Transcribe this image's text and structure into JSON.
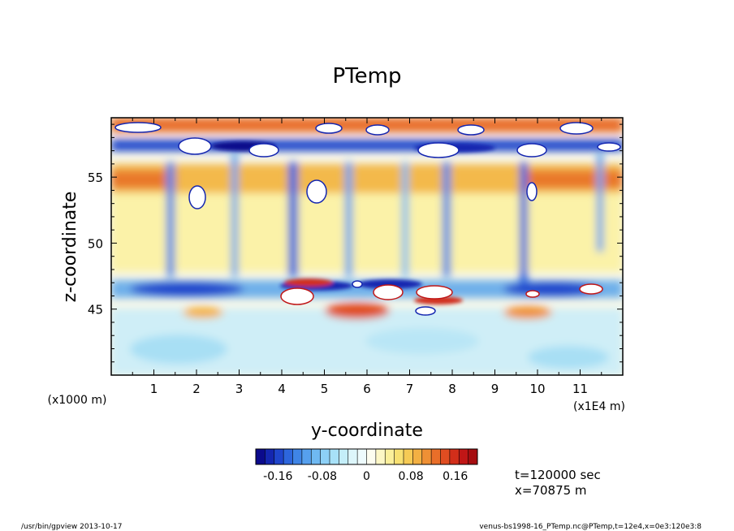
{
  "footer": {
    "left": "/usr/bin/gpview  2013-10-17",
    "right": "venus-bs1998-16_PTemp.nc@PTemp,t=12e4,x=0e3:120e3:8"
  },
  "info": {
    "time": "t=120000 sec",
    "position": "x=70875 m"
  },
  "chart_data": {
    "type": "heatmap",
    "title": "PTemp",
    "xlabel": "y-coordinate",
    "ylabel": "z-coordinate",
    "x_unit": "(x1E4 m)",
    "y_unit": "(x1000 m)",
    "xlim": [
      0,
      12
    ],
    "ylim": [
      40,
      59.5
    ],
    "x_ticks": [
      "1",
      "2",
      "3",
      "4",
      "5",
      "6",
      "7",
      "8",
      "9",
      "10",
      "11"
    ],
    "y_ticks": [
      "45",
      "50",
      "55"
    ],
    "colorbar": {
      "min": -0.2,
      "max": 0.2,
      "ticks": [
        "-0.16",
        "-0.08",
        "0",
        "0.08",
        "0.16"
      ],
      "colors": [
        "#0b0a8c",
        "#1426b0",
        "#1f45cc",
        "#2d66dd",
        "#3f85e6",
        "#56a0ee",
        "#6fb9f2",
        "#8dd0f6",
        "#a8e1f8",
        "#c4eef9",
        "#ddf6fb",
        "#eefbfd",
        "#fdfdf0",
        "#fdf7c6",
        "#fbef9b",
        "#f8e072",
        "#f6ca55",
        "#f3b043",
        "#ef9035",
        "#e96e29",
        "#e04d21",
        "#d22e1a",
        "#c01616",
        "#a60d10"
      ]
    },
    "field_features": {
      "warm_layer_z": 55,
      "cool_layer_z": 46.5,
      "top_cold_band_z": 57.5
    }
  }
}
